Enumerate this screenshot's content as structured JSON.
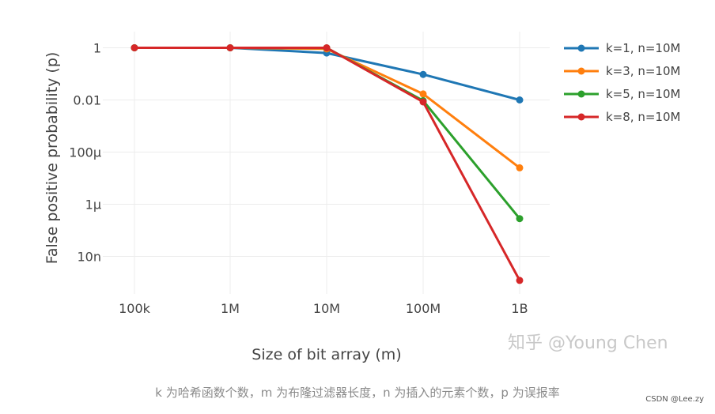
{
  "chart_data": {
    "type": "line",
    "title": "",
    "xlabel": "Size of bit array (m)",
    "ylabel": "False positive probability (p)",
    "xscale": "log",
    "yscale": "log",
    "x": [
      100000,
      1000000,
      10000000,
      100000000,
      1000000000
    ],
    "x_tick_labels": [
      "100k",
      "1M",
      "10M",
      "100M",
      "1B"
    ],
    "y_ticks": [
      1,
      0.01,
      0.0001,
      1e-06,
      1e-08
    ],
    "y_tick_labels": [
      "1",
      "0.01",
      "100μ",
      "1μ",
      "10n"
    ],
    "ylim": [
      3e-10,
      3
    ],
    "grid": true,
    "legend_position": "right",
    "series": [
      {
        "name": "k=1, n=10M",
        "color": "#1f77b4",
        "values": [
          1.0,
          1.0,
          0.63,
          0.095,
          0.01
        ]
      },
      {
        "name": "k=3, n=10M",
        "color": "#ff7f0e",
        "values": [
          1.0,
          1.0,
          0.91,
          0.017,
          2.5e-05
        ]
      },
      {
        "name": "k=5, n=10M",
        "color": "#2ca02c",
        "values": [
          1.0,
          1.0,
          0.99,
          0.0094,
          2.8e-07
        ]
      },
      {
        "name": "k=8, n=10M",
        "color": "#d62728",
        "values": [
          1.0,
          1.0,
          1.0,
          0.0084,
          1.2e-09
        ]
      }
    ]
  },
  "watermark": "知乎 @Young Chen",
  "caption": "k 为哈希函数个数，m 为布隆过滤器长度，n 为插入的元素个数，p 为误报率",
  "credit": "CSDN @Lee.zy"
}
